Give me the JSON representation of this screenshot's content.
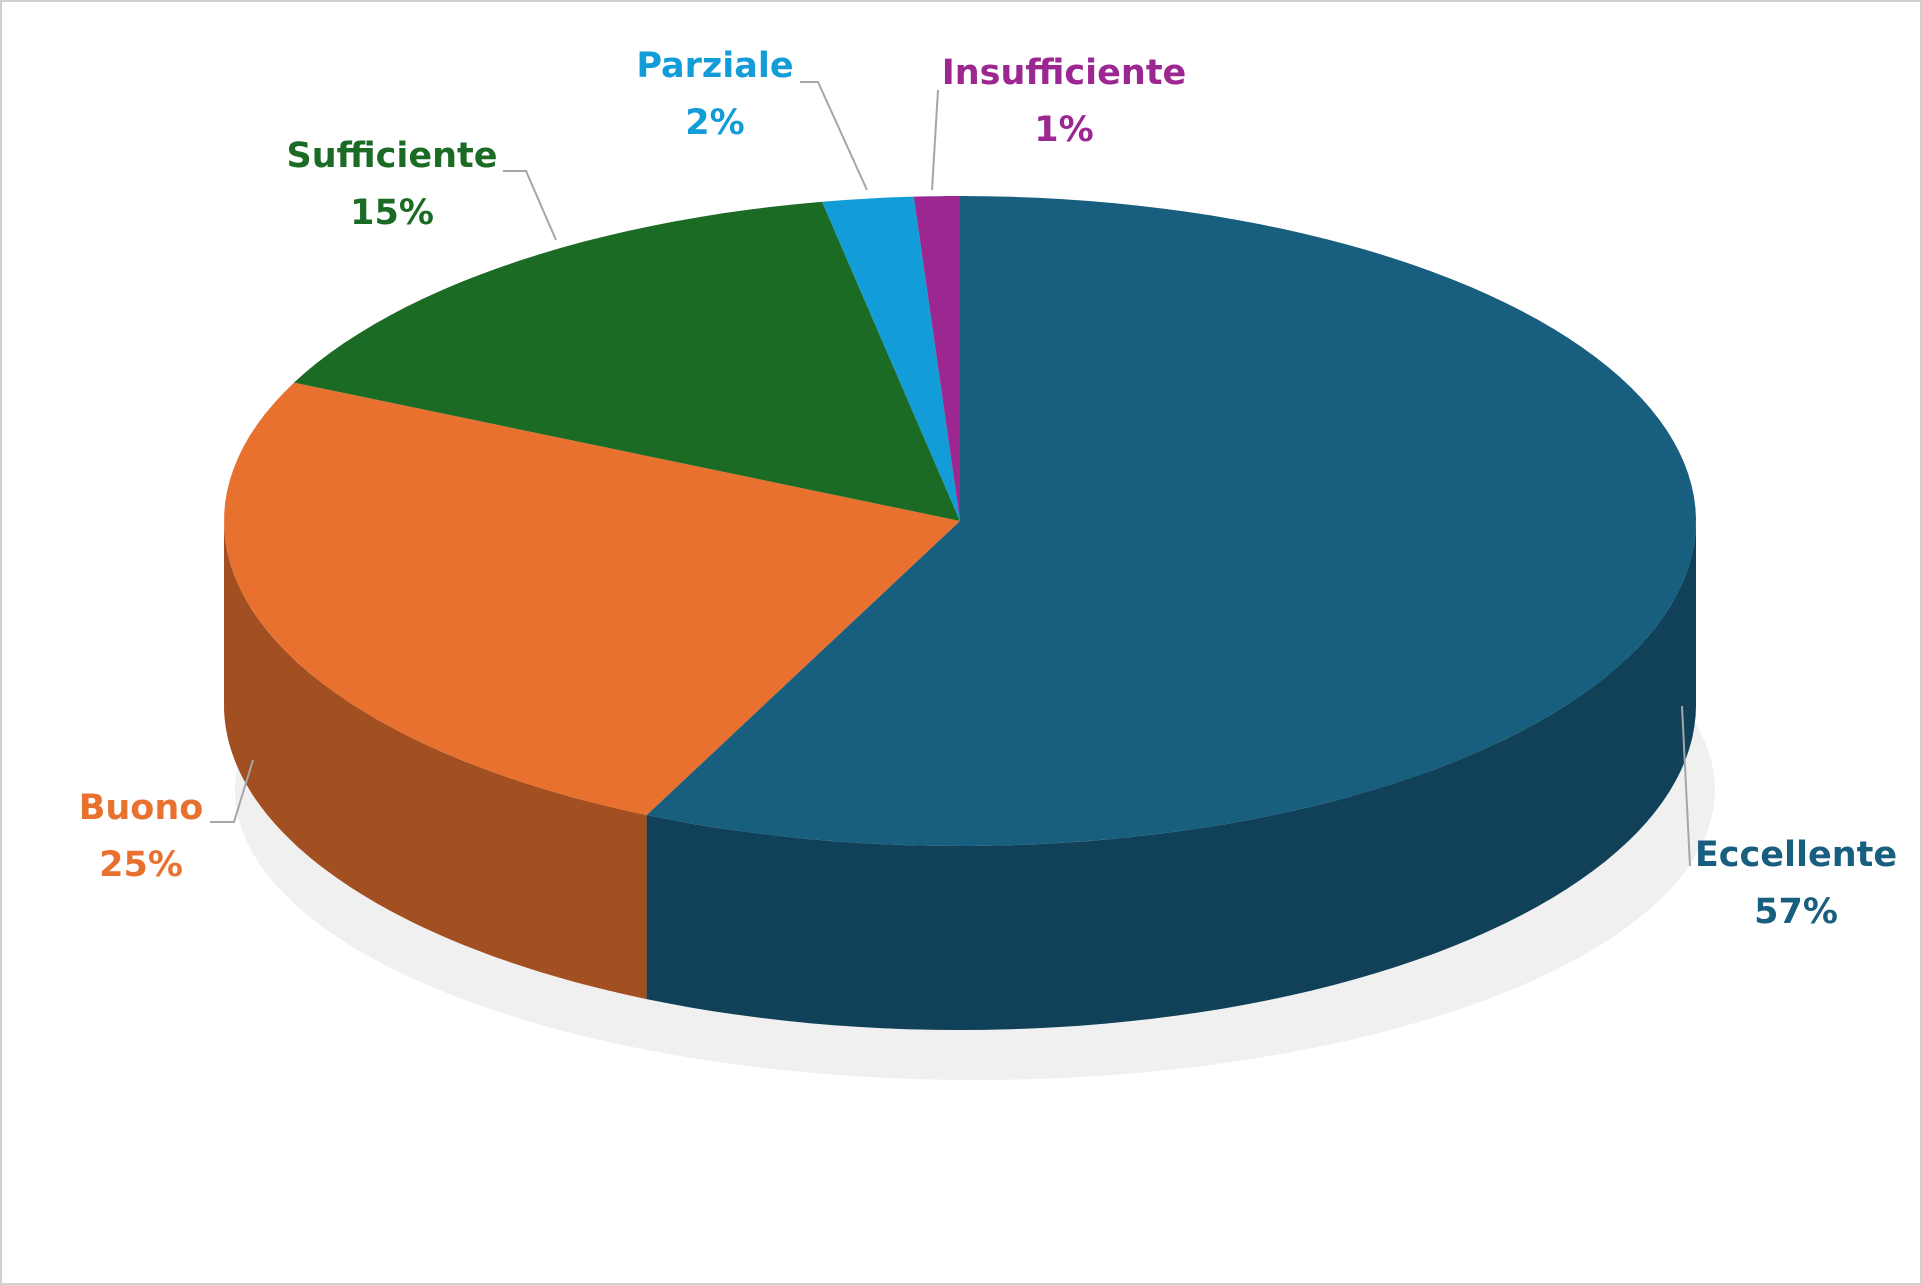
{
  "chart_data": {
    "type": "pie",
    "categories": [
      "Eccellente",
      "Buono",
      "Sufficiente",
      "Parziale",
      "Insufficiente"
    ],
    "values": [
      57,
      25,
      15,
      2,
      1
    ],
    "value_labels": [
      "57%",
      "25%",
      "15%",
      "2%",
      "1%"
    ],
    "colors": [
      "#175e7f",
      "#e87130",
      "#1b6b24",
      "#129cd8",
      "#9c2790"
    ],
    "style": "3d"
  }
}
